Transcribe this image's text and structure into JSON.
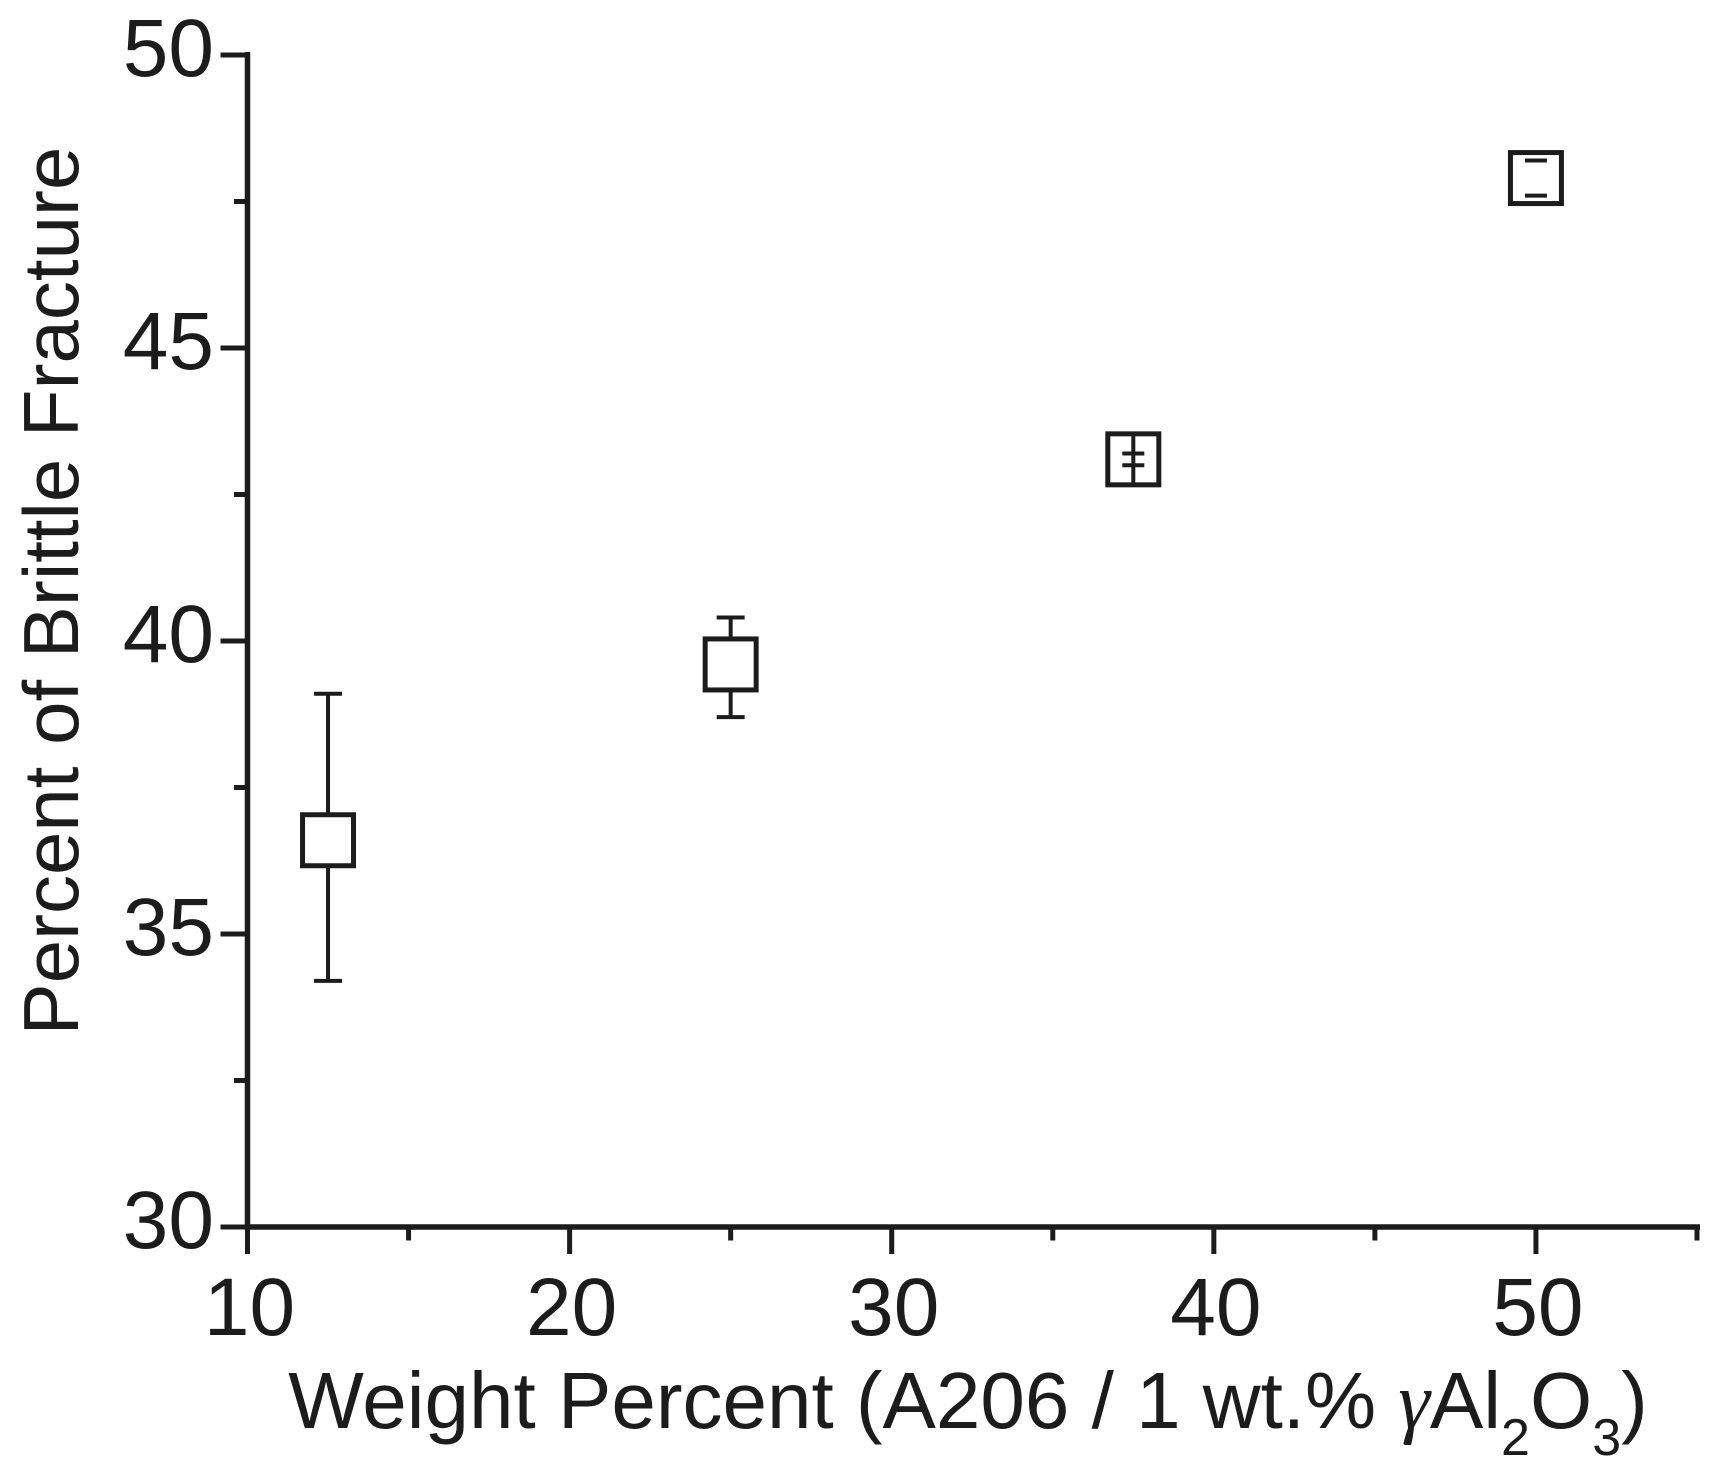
{
  "figure": {
    "background": "#ffffff",
    "ink_color": "#1c1c1c"
  },
  "chart_data": {
    "type": "scatter",
    "title": "",
    "xlabel": "Weight Percent (A206 / 1 wt.% γAl2O3)",
    "xlabel_parts": [
      {
        "t": "Weight Percent (A206 / 1 wt.% ",
        "style": "normal"
      },
      {
        "t": "γ",
        "style": "gamma"
      },
      {
        "t": "Al",
        "style": "normal"
      },
      {
        "t": "2",
        "style": "sub"
      },
      {
        "t": "O",
        "style": "normal"
      },
      {
        "t": "3",
        "style": "sub"
      },
      {
        "t": ")",
        "style": "normal"
      }
    ],
    "ylabel": "Percent of Brittle Fracture",
    "x_axis": {
      "min": 10,
      "max": 55,
      "major_ticks": [
        10,
        20,
        30,
        40,
        50
      ],
      "minor_ticks": [
        15,
        25,
        35,
        45,
        55
      ],
      "tick_labels": [
        "10",
        "20",
        "30",
        "40",
        "50"
      ]
    },
    "y_axis": {
      "min": 30,
      "max": 50,
      "major_ticks": [
        50,
        45,
        40,
        35,
        30
      ],
      "minor_ticks": [
        47.5,
        42.5,
        37.5,
        32.5
      ],
      "tick_labels": [
        "50",
        "45",
        "40",
        "35",
        "30"
      ]
    },
    "grid": false,
    "legend": false,
    "series": [
      {
        "name": "percent-brittle-fracture",
        "marker": "open-square",
        "marker_color": "#1c1c1c",
        "marker_fill": "#ffffff",
        "points": [
          {
            "x": 12.5,
            "y": 36.6,
            "y_err_plus": 2.5,
            "y_err_minus": 2.4,
            "err_render": "behind-marker"
          },
          {
            "x": 25.0,
            "y": 39.6,
            "y_err_plus": 0.8,
            "y_err_minus": 0.9,
            "err_render": "behind-marker"
          },
          {
            "x": 37.5,
            "y": 43.1,
            "y_err_plus": 0.1,
            "y_err_minus": 0.1,
            "err_render": "line-through-marker"
          },
          {
            "x": 50.0,
            "y": 47.9,
            "y_err_plus": 0.3,
            "y_err_minus": 0.3,
            "err_render": "caps-over-marker"
          }
        ]
      }
    ]
  }
}
